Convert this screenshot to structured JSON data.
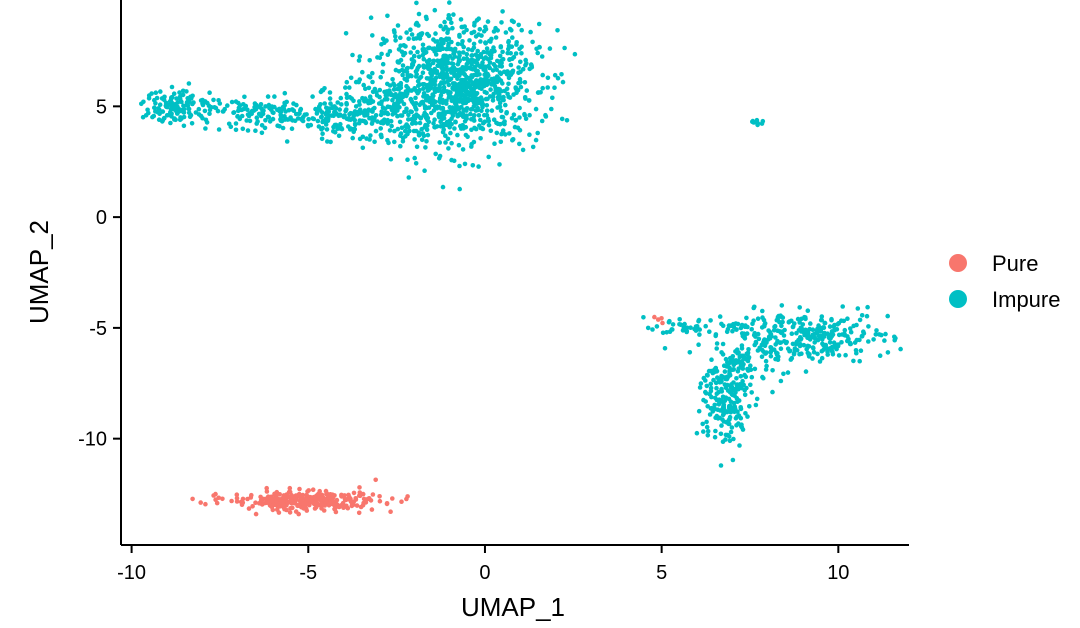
{
  "chart_data": {
    "type": "scatter",
    "title": "",
    "xlabel": "UMAP_1",
    "ylabel": "UMAP_2",
    "xlim": [
      -10.3,
      12
    ],
    "ylim": [
      -14.8,
      9.8
    ],
    "x_ticks": [
      -10,
      -5,
      0,
      5,
      10
    ],
    "x_tick_labels": [
      "-10",
      "-5",
      "0",
      "5",
      "10"
    ],
    "y_ticks": [
      -10,
      -5,
      0,
      5
    ],
    "y_tick_labels": [
      "-10",
      "-5",
      "0",
      "5"
    ],
    "grid": false,
    "legend_position": "right",
    "series": [
      {
        "name": "Pure",
        "color": "#F8766D",
        "clusters": [
          {
            "center": [
              -5.1,
              -12.8
            ],
            "spread": [
              1.05,
              0.22
            ],
            "n": 320
          },
          {
            "center": [
              4.9,
              -4.6
            ],
            "spread": [
              0.08,
              0.08
            ],
            "n": 4
          }
        ]
      },
      {
        "name": "Impure",
        "color": "#00BFC4",
        "clusters": [
          {
            "center": [
              -0.8,
              6.0
            ],
            "spread": [
              1.15,
              1.4
            ],
            "n": 1100
          },
          {
            "center": [
              -3.5,
              4.6
            ],
            "spread": [
              1.0,
              0.6
            ],
            "n": 260
          },
          {
            "center": [
              -6.2,
              4.6
            ],
            "spread": [
              0.8,
              0.35
            ],
            "n": 120
          },
          {
            "center": [
              -8.6,
              5.0
            ],
            "spread": [
              0.55,
              0.4
            ],
            "n": 140
          },
          {
            "center": [
              7.7,
              4.3
            ],
            "spread": [
              0.1,
              0.07
            ],
            "n": 8
          },
          {
            "center": [
              9.0,
              -5.4
            ],
            "spread": [
              1.25,
              0.55
            ],
            "n": 320
          },
          {
            "center": [
              6.8,
              -8.2
            ],
            "spread": [
              0.35,
              1.1
            ],
            "n": 200
          },
          {
            "center": [
              5.9,
              -5.0
            ],
            "spread": [
              0.6,
              0.15
            ],
            "n": 40
          },
          {
            "center": [
              7.4,
              -6.5
            ],
            "spread": [
              0.5,
              0.5
            ],
            "n": 60
          }
        ]
      }
    ]
  }
}
